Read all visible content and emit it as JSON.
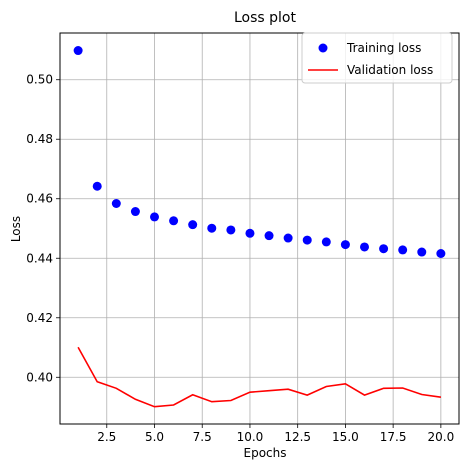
{
  "chart_data": {
    "type": "line",
    "title": "Loss plot",
    "xlabel": "Epochs",
    "ylabel": "Loss",
    "xlim": [
      0.05,
      20.95
    ],
    "ylim": [
      0.3843,
      0.5157
    ],
    "x_ticks": [
      2.5,
      5.0,
      7.5,
      10.0,
      12.5,
      15.0,
      17.5,
      20.0
    ],
    "x_tick_labels": [
      "2.5",
      "5.0",
      "7.5",
      "10.0",
      "12.5",
      "15.0",
      "17.5",
      "20.0"
    ],
    "y_ticks": [
      0.4,
      0.42,
      0.44,
      0.46,
      0.48,
      0.5
    ],
    "y_tick_labels": [
      "0.40",
      "0.42",
      "0.44",
      "0.46",
      "0.48",
      "0.50"
    ],
    "grid": true,
    "legend_position": "top-right",
    "x": [
      1,
      2,
      3,
      4,
      5,
      6,
      7,
      8,
      9,
      10,
      11,
      12,
      13,
      14,
      15,
      16,
      17,
      18,
      19,
      20
    ],
    "series": [
      {
        "name": "Training loss",
        "style": "scatter",
        "color": "#0000ff",
        "values": [
          0.5098,
          0.4642,
          0.4584,
          0.4557,
          0.4539,
          0.4526,
          0.4513,
          0.4501,
          0.4495,
          0.4484,
          0.4476,
          0.4468,
          0.4461,
          0.4455,
          0.4446,
          0.4438,
          0.4432,
          0.4428,
          0.4421,
          0.4416
        ]
      },
      {
        "name": "Validation loss",
        "style": "line",
        "color": "#ff0000",
        "values": [
          0.4101,
          0.3985,
          0.3963,
          0.3926,
          0.3901,
          0.3907,
          0.3941,
          0.3918,
          0.3922,
          0.395,
          0.3955,
          0.396,
          0.394,
          0.3969,
          0.3978,
          0.394,
          0.3963,
          0.3964,
          0.3942,
          0.3933
        ]
      }
    ]
  }
}
